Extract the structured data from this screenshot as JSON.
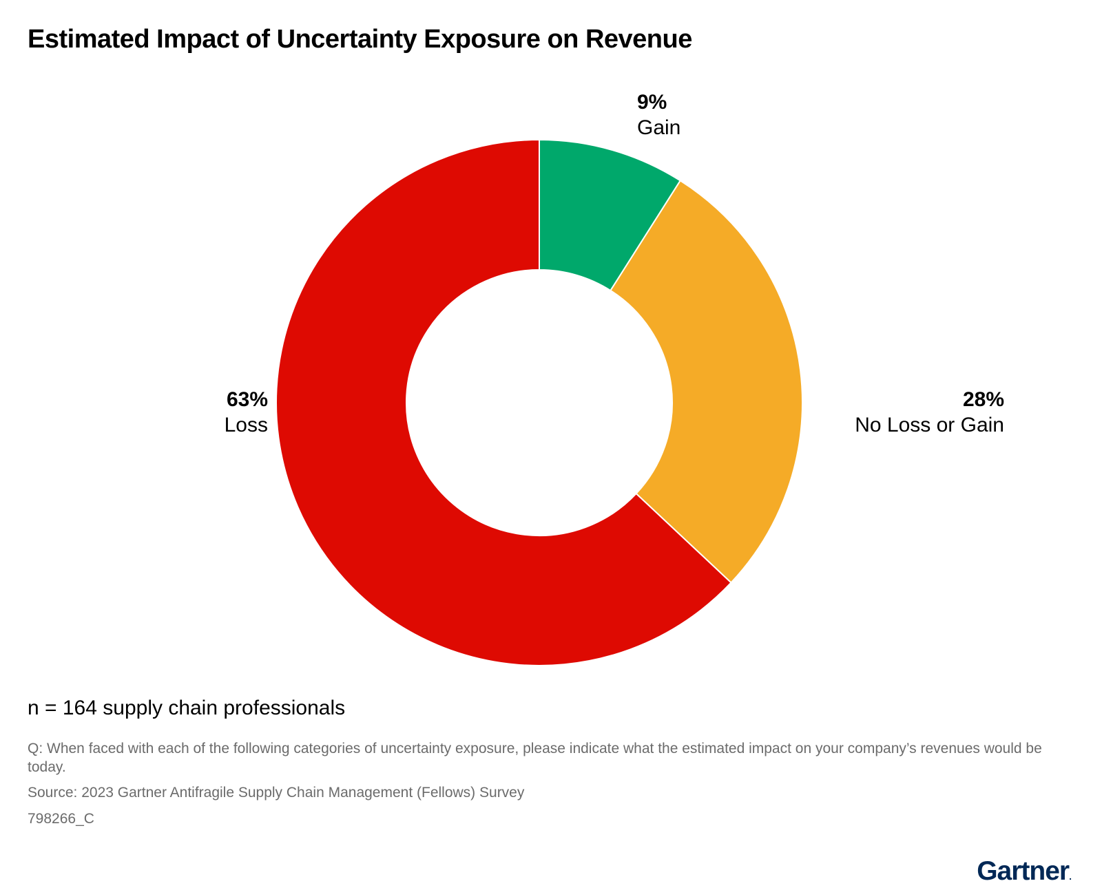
{
  "chart_data": {
    "type": "pie",
    "variant": "donut",
    "title": "Estimated Impact of Uncertainty Exposure on Revenue",
    "slices": [
      {
        "label": "Gain",
        "value": 9,
        "display": "9%",
        "color": "#00a86b"
      },
      {
        "label": "No Loss or Gain",
        "value": 28,
        "display": "28%",
        "color": "#f5ab27"
      },
      {
        "label": "Loss",
        "value": 63,
        "display": "63%",
        "color": "#de0a02"
      }
    ],
    "start": "top",
    "direction": "clockwise"
  },
  "notes": {
    "sample": "n = 164 supply chain professionals",
    "question": "Q: When faced with each of the following categories of uncertainty exposure, please indicate what the estimated impact on your company’s revenues would be today.",
    "source": "Source: 2023 Gartner Antifragile Supply Chain Management (Fellows) Survey",
    "code": "798266_C"
  },
  "brand": {
    "logo_text": "Gartner",
    "logo_mark": ".",
    "color": "#002856"
  }
}
